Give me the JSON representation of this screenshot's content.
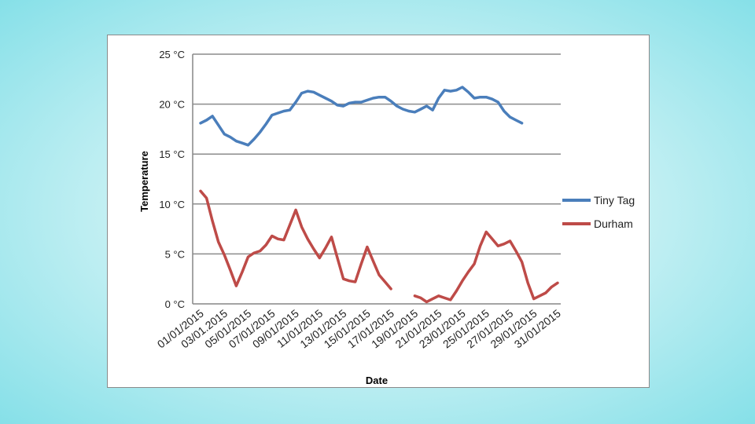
{
  "chart_data": {
    "type": "line",
    "xlabel": "Date",
    "ylabel": "Temperature",
    "ylim": [
      0,
      25
    ],
    "y_ticks": [
      0,
      5,
      10,
      15,
      20,
      25
    ],
    "y_tick_labels": [
      "0 °C",
      "5 °C",
      "10 °C",
      "15 °C",
      "20 °C",
      "25 °C"
    ],
    "x_tick_labels": [
      "01/01/2015",
      "03/01/2015",
      "05/01/2015",
      "07/01/2015",
      "09/01/2015",
      "11/01/2015",
      "13/01/2015",
      "15/01/2015",
      "17/01/2015",
      "19/01/2015",
      "21/01/2015",
      "23/01/2015",
      "25/01/2015",
      "27/01/2015",
      "29/01/2015",
      "31/01/2015"
    ],
    "x_tick_label_shown": [
      "01/01/2015",
      "03/01.2015",
      "05/01/2015",
      "07/01/2015",
      "09/01/2015",
      "11/01/2015",
      "13/01/2015",
      "15/01/2015",
      "17/01/2015",
      "19/01/2015",
      "21/01/2015",
      "23/01/2015",
      "25/01/2015",
      "27/01/2015",
      "29/01/2015",
      "31/01/2015"
    ],
    "grid": true,
    "legend_position": "right",
    "series": [
      {
        "name": "Tiny Tag",
        "color": "#4a7ebb",
        "points": [
          [
            "01/01/2015",
            18.1
          ],
          [
            "01/01/2015 12:00",
            18.4
          ],
          [
            "02/01/2015",
            18.8
          ],
          [
            "02/01/2015 12:00",
            17.9
          ],
          [
            "03/01/2015",
            17.0
          ],
          [
            "03/01/2015 12:00",
            16.7
          ],
          [
            "04/01/2015",
            16.3
          ],
          [
            "04/01/2015 12:00",
            16.1
          ],
          [
            "05/01/2015",
            15.9
          ],
          [
            "05/01/2015 12:00",
            16.5
          ],
          [
            "06/01/2015",
            17.2
          ],
          [
            "06/01/2015 12:00",
            18.0
          ],
          [
            "07/01/2015",
            18.9
          ],
          [
            "07/01/2015 12:00",
            19.1
          ],
          [
            "08/01/2015",
            19.3
          ],
          [
            "08/01/2015 12:00",
            19.4
          ],
          [
            "09/01/2015",
            20.2
          ],
          [
            "09/01/2015 12:00",
            21.1
          ],
          [
            "10/01/2015",
            21.3
          ],
          [
            "10/01/2015 12:00",
            21.2
          ],
          [
            "11/01/2015",
            20.9
          ],
          [
            "11/01/2015 12:00",
            20.6
          ],
          [
            "12/01/2015",
            20.3
          ],
          [
            "12/01/2015 12:00",
            19.9
          ],
          [
            "13/01/2015",
            19.8
          ],
          [
            "13/01/2015 12:00",
            20.1
          ],
          [
            "14/01/2015",
            20.2
          ],
          [
            "14/01/2015 12:00",
            20.2
          ],
          [
            "15/01/2015",
            20.4
          ],
          [
            "15/01/2015 12:00",
            20.6
          ],
          [
            "16/01/2015",
            20.7
          ],
          [
            "16/01/2015 12:00",
            20.7
          ],
          [
            "17/01/2015",
            20.3
          ],
          [
            "17/01/2015 12:00",
            19.8
          ],
          [
            "18/01/2015",
            19.5
          ],
          [
            "18/01/2015 12:00",
            19.3
          ],
          [
            "19/01/2015",
            19.2
          ],
          [
            "19/01/2015 12:00",
            19.5
          ],
          [
            "20/01/2015",
            19.8
          ],
          [
            "20/01/2015 12:00",
            19.4
          ],
          [
            "21/01/2015",
            20.6
          ],
          [
            "21/01/2015 12:00",
            21.4
          ],
          [
            "22/01/2015",
            21.3
          ],
          [
            "22/01/2015 12:00",
            21.4
          ],
          [
            "23/01/2015",
            21.7
          ],
          [
            "23/01/2015 12:00",
            21.2
          ],
          [
            "24/01/2015",
            20.6
          ],
          [
            "24/01/2015 12:00",
            20.7
          ],
          [
            "25/01/2015",
            20.7
          ],
          [
            "25/01/2015 12:00",
            20.5
          ],
          [
            "26/01/2015",
            20.2
          ],
          [
            "26/01/2015 12:00",
            19.3
          ],
          [
            "27/01/2015",
            18.7
          ],
          [
            "27/01/2015 12:00",
            18.4
          ],
          [
            "28/01/2015",
            18.1
          ]
        ]
      },
      {
        "name": "Durham",
        "color": "#be4b48",
        "points": [
          [
            "01/01/2015",
            11.3
          ],
          [
            "01/01/2015 12:00",
            10.6
          ],
          [
            "02/01/2015",
            8.3
          ],
          [
            "02/01/2015 12:00",
            6.2
          ],
          [
            "03/01/2015",
            4.9
          ],
          [
            "03/01/2015 12:00",
            3.4
          ],
          [
            "04/01/2015",
            1.8
          ],
          [
            "04/01/2015 12:00",
            3.2
          ],
          [
            "05/01/2015",
            4.7
          ],
          [
            "05/01/2015 12:00",
            5.1
          ],
          [
            "06/01/2015",
            5.3
          ],
          [
            "06/01/2015 12:00",
            5.9
          ],
          [
            "07/01/2015",
            6.8
          ],
          [
            "07/01/2015 12:00",
            6.5
          ],
          [
            "08/01/2015",
            6.4
          ],
          [
            "08/01/2015 12:00",
            7.9
          ],
          [
            "09/01/2015",
            9.4
          ],
          [
            "09/01/2015 12:00",
            7.7
          ],
          [
            "10/01/2015",
            6.5
          ],
          [
            "10/01/2015 12:00",
            5.5
          ],
          [
            "11/01/2015",
            4.6
          ],
          [
            "11/01/2015 12:00",
            5.6
          ],
          [
            "12/01/2015",
            6.7
          ],
          [
            "12/01/2015 12:00",
            4.6
          ],
          [
            "13/01/2015",
            2.5
          ],
          [
            "13/01/2015 12:00",
            2.3
          ],
          [
            "14/01/2015",
            2.2
          ],
          [
            "14/01/2015 12:00",
            4.0
          ],
          [
            "15/01/2015",
            5.7
          ],
          [
            "15/01/2015 12:00",
            4.3
          ],
          [
            "16/01/2015",
            2.9
          ],
          [
            "16/01/2015 12:00",
            2.2
          ],
          [
            "17/01/2015",
            1.5
          ],
          [
            "17/01/2015 12:00",
            null
          ],
          [
            "18/01/2015",
            null
          ],
          [
            "18/01/2015 12:00",
            null
          ],
          [
            "19/01/2015",
            0.8
          ],
          [
            "19/01/2015 12:00",
            0.6
          ],
          [
            "20/01/2015",
            0.2
          ],
          [
            "20/01/2015 12:00",
            0.5
          ],
          [
            "21/01/2015",
            0.8
          ],
          [
            "21/01/2015 12:00",
            0.6
          ],
          [
            "22/01/2015",
            0.4
          ],
          [
            "22/01/2015 12:00",
            1.3
          ],
          [
            "23/01/2015",
            2.3
          ],
          [
            "23/01/2015 12:00",
            3.2
          ],
          [
            "24/01/2015",
            4.0
          ],
          [
            "24/01/2015 12:00",
            5.8
          ],
          [
            "25/01/2015",
            7.2
          ],
          [
            "25/01/2015 12:00",
            6.5
          ],
          [
            "26/01/2015",
            5.8
          ],
          [
            "26/01/2015 12:00",
            6.0
          ],
          [
            "27/01/2015",
            6.3
          ],
          [
            "27/01/2015 12:00",
            5.3
          ],
          [
            "28/01/2015",
            4.2
          ],
          [
            "28/01/2015 12:00",
            2.1
          ],
          [
            "29/01/2015",
            0.5
          ],
          [
            "29/01/2015 12:00",
            0.8
          ],
          [
            "30/01/2015",
            1.1
          ],
          [
            "30/01/2015 12:00",
            1.7
          ],
          [
            "31/01/2015",
            2.1
          ]
        ]
      }
    ]
  }
}
